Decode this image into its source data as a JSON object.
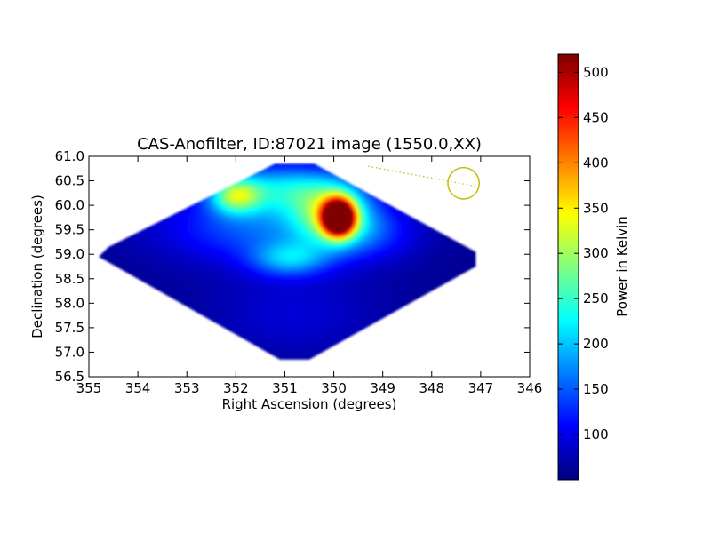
{
  "chart_data": {
    "type": "heatmap",
    "title": "CAS-Anofilter, ID:87021 image (1550.0,XX)",
    "xlabel": "Right Ascension (degrees)",
    "ylabel": "Declination (degrees)",
    "xlim": [
      355,
      346
    ],
    "ylim": [
      56.5,
      61.0
    ],
    "xticks": [
      355,
      354,
      353,
      352,
      351,
      350,
      349,
      348,
      347,
      346
    ],
    "yticks": [
      56.5,
      57.0,
      57.5,
      58.0,
      58.5,
      59.0,
      59.5,
      60.0,
      60.5,
      61.0
    ],
    "xtick_labels": [
      "355",
      "354",
      "353",
      "352",
      "351",
      "350",
      "349",
      "348",
      "347",
      "346"
    ],
    "ytick_labels": [
      "56.5",
      "57.0",
      "57.5",
      "58.0",
      "58.5",
      "59.0",
      "59.5",
      "60.0",
      "60.5",
      "61.0"
    ],
    "colormap": "jet",
    "colorbar": {
      "label": "Power in Kelvin",
      "range": [
        50,
        520
      ],
      "ticks": [
        100,
        150,
        200,
        250,
        300,
        350,
        400,
        450,
        500
      ],
      "tick_labels": [
        "100",
        "150",
        "200",
        "250",
        "300",
        "350",
        "400",
        "450",
        "500"
      ]
    },
    "footprint_vertices_deg": [
      [
        351.2,
        60.85
      ],
      [
        350.4,
        60.85
      ],
      [
        347.1,
        59.05
      ],
      [
        347.1,
        58.75
      ],
      [
        350.5,
        56.85
      ],
      [
        351.1,
        56.85
      ],
      [
        354.8,
        58.95
      ],
      [
        354.6,
        59.15
      ]
    ],
    "background_level": 60,
    "features": [
      {
        "ra": 349.9,
        "dec": 59.75,
        "peak": 520,
        "sigma_ra": 0.22,
        "sigma_dec": 0.25
      },
      {
        "ra": 350.05,
        "dec": 59.85,
        "peak": 180,
        "sigma_ra": 0.55,
        "sigma_dec": 0.45
      },
      {
        "ra": 351.1,
        "dec": 60.35,
        "peak": 130,
        "sigma_ra": 0.9,
        "sigma_dec": 0.35
      },
      {
        "ra": 352.0,
        "dec": 60.2,
        "peak": 170,
        "sigma_ra": 0.35,
        "sigma_dec": 0.25
      },
      {
        "ra": 350.9,
        "dec": 58.9,
        "peak": 110,
        "sigma_ra": 0.55,
        "sigma_dec": 0.25
      },
      {
        "ra": 351.5,
        "dec": 59.55,
        "peak": 90,
        "sigma_ra": 1.4,
        "sigma_dec": 0.5
      },
      {
        "ra": 349.3,
        "dec": 59.45,
        "peak": 60,
        "sigma_ra": 0.7,
        "sigma_dec": 0.4
      },
      {
        "ra": 350.8,
        "dec": 57.8,
        "peak": 30,
        "sigma_ra": 1.2,
        "sigma_dec": 0.6
      }
    ],
    "annotation": {
      "circle_center": [
        347.35,
        60.45
      ],
      "circle_radius_deg": 0.32,
      "line_from": [
        349.3,
        60.8
      ],
      "line_to": [
        347.05,
        60.38
      ],
      "color": "#bfbf00"
    }
  }
}
